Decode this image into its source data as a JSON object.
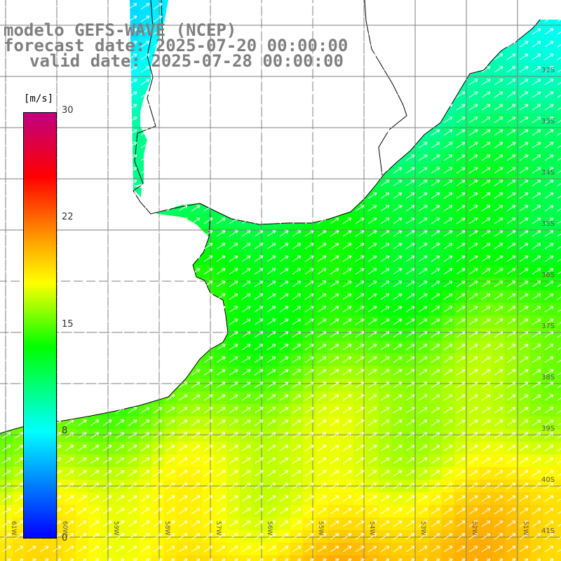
{
  "title": {
    "line1": "modelo GEFS-WAVE (NCEP)",
    "line2": "forecast date: 2025-07-20 00:00:00",
    "line3": "valid date: 2025-07-28 00:00:00"
  },
  "colorbar": {
    "unit": "[m/s]",
    "ticks": [
      "30",
      "22",
      "15",
      "8",
      "0"
    ],
    "colors": [
      "#0000ff",
      "#00ffff",
      "#00ff00",
      "#ffff00",
      "#ffa000",
      "#ff0000",
      "#c00080"
    ]
  },
  "lat_labels": [
    "32S",
    "33S",
    "34S",
    "35S",
    "36S",
    "37S",
    "38S",
    "39S",
    "40S",
    "41S"
  ],
  "lon_labels": [
    "61W",
    "60W",
    "59W",
    "58W",
    "57W",
    "56W",
    "55W",
    "54W",
    "53W",
    "52W",
    "51W"
  ],
  "map": {
    "land_color": "#ffffff",
    "grid_color": "#7f7f7f",
    "coast_color": "#000000",
    "arrow_color": "#ffffff"
  }
}
